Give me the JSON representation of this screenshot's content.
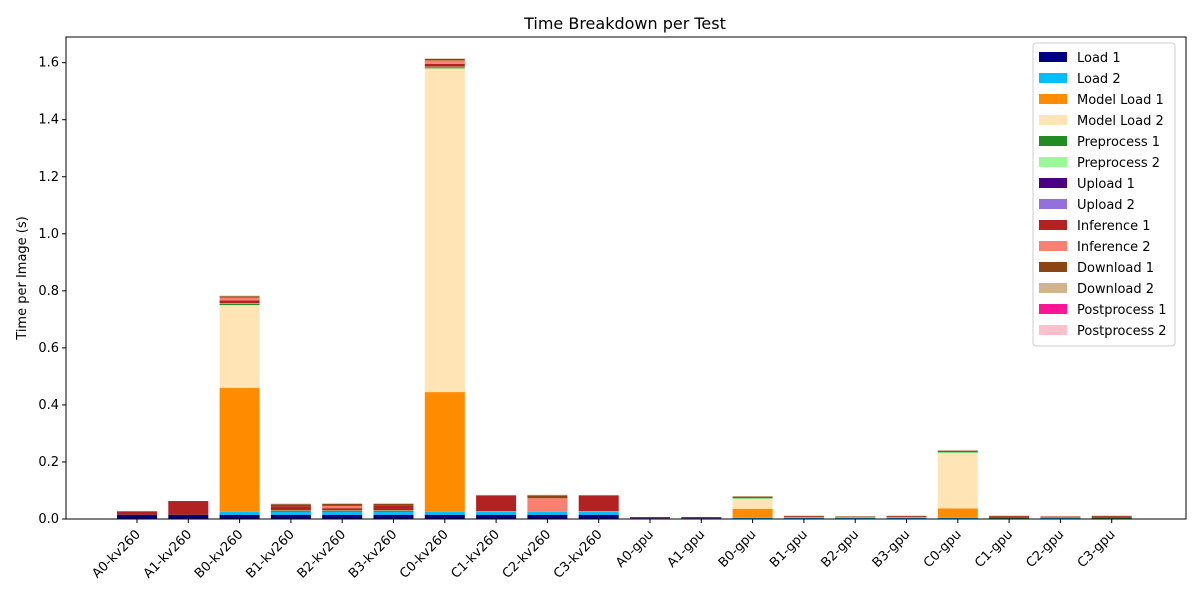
{
  "chart_data": {
    "type": "bar",
    "stacked": true,
    "title": "Time Breakdown per Test",
    "xlabel": "",
    "ylabel": "Time per Image (s)",
    "ylim": [
      0,
      1.69
    ],
    "yticks": [
      0.0,
      0.2,
      0.4,
      0.6,
      0.8,
      1.0,
      1.2,
      1.4,
      1.6
    ],
    "ytick_labels": [
      "0.0",
      "0.2",
      "0.4",
      "0.6",
      "0.8",
      "1.0",
      "1.2",
      "1.4",
      "1.6"
    ],
    "grid": false,
    "legend_position": "top-right",
    "categories": [
      "A0-kv260",
      "A1-kv260",
      "B0-kv260",
      "B1-kv260",
      "B2-kv260",
      "B3-kv260",
      "C0-kv260",
      "C1-kv260",
      "C2-kv260",
      "C3-kv260",
      "A0-gpu",
      "A1-gpu",
      "B0-gpu",
      "B1-gpu",
      "B2-gpu",
      "B3-gpu",
      "C0-gpu",
      "C1-gpu",
      "C2-gpu",
      "C3-gpu"
    ],
    "series": [
      {
        "name": "Load 1",
        "color": "#000080",
        "values": [
          0.015,
          0.015,
          0.015,
          0.015,
          0.015,
          0.015,
          0.015,
          0.015,
          0.015,
          0.015,
          0.003,
          0.003,
          0.003,
          0.003,
          0.003,
          0.003,
          0.003,
          0.003,
          0.003,
          0.003
        ]
      },
      {
        "name": "Load 2",
        "color": "#00BFFF",
        "values": [
          0,
          0,
          0.01,
          0.01,
          0.01,
          0.01,
          0.01,
          0.01,
          0.01,
          0.01,
          0,
          0,
          0.001,
          0.001,
          0.001,
          0.001,
          0.001,
          0,
          0.001,
          0
        ]
      },
      {
        "name": "Model Load 1",
        "color": "#FF8C00",
        "values": [
          0,
          0,
          0.435,
          0,
          0,
          0,
          0.42,
          0,
          0,
          0,
          0,
          0,
          0.032,
          0,
          0,
          0,
          0.033,
          0,
          0,
          0
        ]
      },
      {
        "name": "Model Load 2",
        "color": "#FFE4B5",
        "values": [
          0,
          0,
          0.29,
          0,
          0,
          0,
          1.135,
          0,
          0,
          0,
          0,
          0,
          0.035,
          0,
          0,
          0,
          0.195,
          0,
          0,
          0
        ]
      },
      {
        "name": "Preprocess 1",
        "color": "#228B22",
        "values": [
          0,
          0,
          0.004,
          0.003,
          0.003,
          0.003,
          0.004,
          0.002,
          0.002,
          0.002,
          0,
          0,
          0.002,
          0.002,
          0.002,
          0.002,
          0.002,
          0.001,
          0.001,
          0.001
        ]
      },
      {
        "name": "Preprocess 2",
        "color": "#98FB98",
        "values": [
          0,
          0,
          0.002,
          0.002,
          0.002,
          0.002,
          0.002,
          0.001,
          0.001,
          0.001,
          0,
          0,
          0.001,
          0.001,
          0.001,
          0.001,
          0.001,
          0,
          0,
          0
        ]
      },
      {
        "name": "Upload 1",
        "color": "#4B0082",
        "values": [
          0,
          0,
          0,
          0,
          0,
          0,
          0,
          0,
          0,
          0,
          0,
          0,
          0,
          0,
          0,
          0,
          0,
          0,
          0,
          0
        ]
      },
      {
        "name": "Upload 2",
        "color": "#9370DB",
        "values": [
          0,
          0,
          0,
          0,
          0,
          0,
          0,
          0,
          0,
          0,
          0,
          0,
          0,
          0,
          0,
          0,
          0,
          0,
          0,
          0
        ]
      },
      {
        "name": "Inference 1",
        "color": "#B22222",
        "values": [
          0.012,
          0.048,
          0.01,
          0.015,
          0.008,
          0.016,
          0.01,
          0.055,
          0,
          0.055,
          0.004,
          0.004,
          0.003,
          0.002,
          0,
          0.002,
          0.003,
          0.005,
          0,
          0.005
        ]
      },
      {
        "name": "Inference 2",
        "color": "#FA8072",
        "values": [
          0,
          0,
          0.01,
          0,
          0.008,
          0,
          0.012,
          0,
          0.045,
          0,
          0,
          0,
          0,
          0,
          0,
          0,
          0,
          0,
          0.003,
          0
        ]
      },
      {
        "name": "Download 1",
        "color": "#8B4513",
        "values": [
          0,
          0,
          0.005,
          0.007,
          0.007,
          0.007,
          0.005,
          0,
          0.01,
          0,
          0,
          0,
          0.002,
          0.002,
          0.002,
          0.002,
          0.002,
          0.002,
          0.002,
          0.002
        ]
      },
      {
        "name": "Download 2",
        "color": "#D2B48C",
        "values": [
          0,
          0,
          0.002,
          0.002,
          0.002,
          0.002,
          0.002,
          0,
          0.002,
          0,
          0,
          0,
          0.001,
          0.001,
          0.001,
          0.001,
          0.001,
          0.001,
          0.001,
          0.001
        ]
      },
      {
        "name": "Postprocess 1",
        "color": "#FF1493",
        "values": [
          0,
          0,
          0,
          0,
          0,
          0,
          0,
          0,
          0,
          0,
          0,
          0,
          0,
          0,
          0,
          0,
          0,
          0,
          0,
          0
        ]
      },
      {
        "name": "Postprocess 2",
        "color": "#FFC0CB",
        "values": [
          0,
          0,
          0,
          0,
          0,
          0,
          0,
          0,
          0,
          0,
          0,
          0,
          0,
          0,
          0,
          0,
          0,
          0,
          0,
          0
        ]
      }
    ]
  }
}
